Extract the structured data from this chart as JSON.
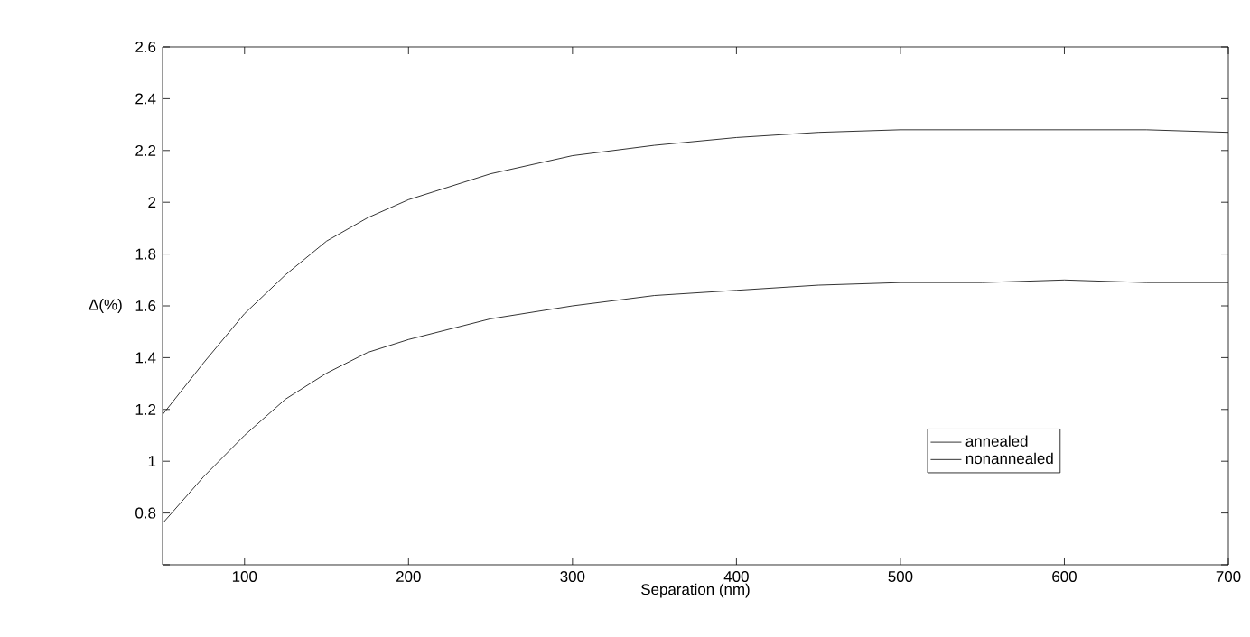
{
  "chart_data": {
    "type": "line",
    "xlabel": "Separation (nm)",
    "ylabel": "Δ(%)",
    "xlim": [
      50,
      700
    ],
    "ylim": [
      0.6,
      2.6
    ],
    "xticks": [
      100,
      200,
      300,
      400,
      500,
      600,
      700
    ],
    "yticks": [
      {
        "value": 0.6,
        "label": null
      },
      0.8,
      1,
      1.2,
      1.4,
      1.6,
      1.8,
      2,
      2.2,
      2.4,
      2.6
    ],
    "legend": "bottom right",
    "grid": false,
    "marker": "none",
    "line_style": "solid",
    "series": [
      {
        "name": "annealed",
        "color": "#000000",
        "x": [
          50,
          75,
          100,
          125,
          150,
          175,
          200,
          250,
          300,
          350,
          400,
          450,
          500,
          550,
          600,
          650,
          700
        ],
        "values": [
          1.18,
          1.38,
          1.57,
          1.72,
          1.85,
          1.94,
          2.01,
          2.11,
          2.18,
          2.22,
          2.25,
          2.27,
          2.28,
          2.28,
          2.28,
          2.28,
          2.27
        ]
      },
      {
        "name": "nonannealed",
        "color": "#000000",
        "x": [
          50,
          75,
          100,
          125,
          150,
          175,
          200,
          250,
          300,
          350,
          400,
          450,
          500,
          550,
          600,
          650,
          700
        ],
        "values": [
          0.76,
          0.94,
          1.1,
          1.24,
          1.34,
          1.42,
          1.47,
          1.55,
          1.6,
          1.64,
          1.66,
          1.68,
          1.69,
          1.69,
          1.7,
          1.69,
          1.69
        ]
      }
    ]
  }
}
